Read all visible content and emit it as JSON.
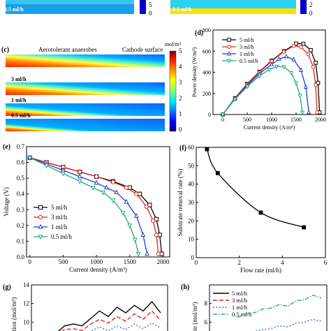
{
  "panel_labels": {
    "c": "(c)",
    "d": "(d)",
    "e": "(e)",
    "f": "(f)",
    "g": "(g)",
    "h": "(h)"
  },
  "top_strip": {
    "left_label": "0.5 ml/h",
    "right_label": "0.5 ml/h",
    "ticks_left": [
      "5",
      "0"
    ],
    "ticks_right": [
      "2",
      "0"
    ]
  },
  "contour": {
    "title_left": "Aerotolerant anaerobes",
    "title_right": "Cathode surface",
    "unit": "mol/m³",
    "scale_ticks": [
      "5",
      "4",
      "3",
      "2",
      "1",
      "0"
    ],
    "strips": [
      {
        "label": "5 ml/h",
        "front": 0.72
      },
      {
        "label": "3 ml/h",
        "front": 0.6
      },
      {
        "label": "1 ml/h",
        "front": 0.42
      },
      {
        "label": "0.5 ml/h",
        "front": 0.3
      }
    ]
  },
  "chart_data": [
    {
      "panel": "d",
      "type": "line",
      "xlabel": "Current density (A/m³)",
      "ylabel": "Power density (W/m³)",
      "xlim": [
        -200,
        2100
      ],
      "ylim": [
        0,
        800
      ],
      "xticks": [
        0,
        500,
        1000,
        1500,
        2000
      ],
      "yticks": [
        0,
        200,
        400,
        600,
        800
      ],
      "legend": "top-left",
      "series": [
        {
          "name": "5 ml/h",
          "marker": "square",
          "color": "#000000",
          "x": [
            0,
            250,
            500,
            750,
            1000,
            1250,
            1500,
            1650,
            1800,
            1900,
            1950,
            1980
          ],
          "y": [
            0,
            155,
            290,
            405,
            510,
            600,
            672,
            670,
            610,
            490,
            300,
            20
          ]
        },
        {
          "name": "3 ml/h",
          "marker": "circle",
          "color": "#e3241b",
          "x": [
            0,
            250,
            500,
            750,
            1000,
            1250,
            1450,
            1600,
            1750,
            1850,
            1900,
            1930
          ],
          "y": [
            0,
            152,
            285,
            400,
            505,
            595,
            650,
            640,
            570,
            450,
            280,
            20
          ]
        },
        {
          "name": "1 ml/h",
          "marker": "triangle-up",
          "color": "#1f3fd6",
          "x": [
            0,
            250,
            500,
            750,
            1000,
            1150,
            1300,
            1450,
            1600,
            1700,
            1760
          ],
          "y": [
            0,
            148,
            275,
            385,
            475,
            525,
            548,
            520,
            420,
            260,
            20
          ]
        },
        {
          "name": "0.5 ml/h",
          "marker": "triangle-down",
          "color": "#23a879",
          "x": [
            0,
            250,
            500,
            750,
            950,
            1100,
            1250,
            1400,
            1500,
            1580,
            1630
          ],
          "y": [
            0,
            145,
            265,
            365,
            425,
            455,
            452,
            395,
            300,
            180,
            20
          ]
        }
      ]
    },
    {
      "panel": "e",
      "type": "line",
      "xlabel": "Current density (A/m³)",
      "ylabel": "Voltage (V)",
      "xlim": [
        -50,
        2100
      ],
      "ylim": [
        0,
        0.7
      ],
      "xticks": [
        0,
        500,
        1000,
        1500,
        2000
      ],
      "yticks": [
        0.0,
        0.1,
        0.2,
        0.3,
        0.4,
        0.5,
        0.6,
        0.7
      ],
      "legend": "bottom-left",
      "series": [
        {
          "name": "5 ml/h",
          "marker": "square",
          "color": "#000000",
          "x": [
            0,
            250,
            500,
            750,
            1000,
            1250,
            1500,
            1650,
            1800,
            1900,
            1950,
            1980
          ],
          "y": [
            0.63,
            0.6,
            0.57,
            0.54,
            0.51,
            0.48,
            0.44,
            0.4,
            0.33,
            0.24,
            0.14,
            0.02
          ]
        },
        {
          "name": "3 ml/h",
          "marker": "circle",
          "color": "#e3241b",
          "x": [
            0,
            250,
            500,
            750,
            1000,
            1250,
            1450,
            1600,
            1750,
            1850,
            1900,
            1930
          ],
          "y": [
            0.63,
            0.6,
            0.57,
            0.54,
            0.51,
            0.475,
            0.44,
            0.4,
            0.32,
            0.23,
            0.14,
            0.02
          ]
        },
        {
          "name": "1 ml/h",
          "marker": "triangle-up",
          "color": "#1f3fd6",
          "x": [
            0,
            250,
            500,
            750,
            1000,
            1150,
            1300,
            1450,
            1600,
            1700,
            1760
          ],
          "y": [
            0.63,
            0.59,
            0.55,
            0.51,
            0.47,
            0.44,
            0.41,
            0.35,
            0.26,
            0.14,
            0.02
          ]
        },
        {
          "name": "0.5 ml/h",
          "marker": "triangle-down",
          "color": "#23a879",
          "x": [
            0,
            250,
            500,
            750,
            950,
            1100,
            1250,
            1400,
            1500,
            1580,
            1630
          ],
          "y": [
            0.63,
            0.58,
            0.53,
            0.48,
            0.44,
            0.41,
            0.36,
            0.28,
            0.2,
            0.11,
            0.02
          ]
        }
      ]
    },
    {
      "panel": "f",
      "type": "line",
      "xlabel": "Flow rate (ml/h)",
      "ylabel": "Substrate removal rate (%)",
      "xlim": [
        0,
        6
      ],
      "ylim": [
        0,
        60
      ],
      "xticks": [
        0,
        2,
        4,
        6
      ],
      "yticks": [
        0,
        10,
        20,
        30,
        40,
        50,
        60
      ],
      "series": [
        {
          "name": "",
          "marker": "square-filled",
          "color": "#000000",
          "x": [
            0.5,
            1,
            3,
            5
          ],
          "y": [
            59,
            46,
            24.5,
            16.5
          ]
        }
      ]
    },
    {
      "panel": "g",
      "type": "line",
      "ylabel": "ation (mol/m³)",
      "yticks": [
        10,
        12,
        14
      ],
      "series": [
        {
          "name": "5 ml/h",
          "style": "solid",
          "color": "#000000",
          "y": [
            8.8,
            9.6,
            9.8,
            9.6,
            10.4,
            11.2,
            10.6,
            11.6,
            11.0,
            11.8,
            11.2,
            12.2,
            11.0
          ]
        },
        {
          "name": "3 ml/h",
          "style": "dash",
          "color": "#e3241b",
          "y": [
            8.6,
            9.2,
            9.3,
            9.1,
            9.8,
            10.3,
            9.9,
            10.6,
            10.1,
            10.9,
            10.3,
            11.2,
            10.2
          ]
        },
        {
          "name": "1 ml/h",
          "style": "dot",
          "color": "#1f3fd6",
          "y": [
            8.3,
            8.7,
            8.9,
            8.7,
            9.0,
            9.5,
            9.1,
            9.6,
            9.2,
            9.8,
            9.3,
            9.9,
            9.4
          ]
        }
      ]
    },
    {
      "panel": "h",
      "type": "line",
      "ylabel": "ate (mol/m³)",
      "yticks": [
        6,
        8
      ],
      "series": [
        {
          "name": "5 ml/h",
          "style": "solid",
          "color": "#000000",
          "y": []
        },
        {
          "name": "3 ml/h",
          "style": "dash",
          "color": "#e3241b",
          "y": []
        },
        {
          "name": "1 ml/h",
          "style": "dot",
          "color": "#1f3fd6",
          "y": [
            4.7,
            4.9,
            5.0,
            5.2,
            5.3,
            5.6,
            5.5,
            5.9,
            6.0,
            6.3,
            6.1
          ]
        },
        {
          "name": "0.5 ml/h",
          "style": "dashdot",
          "color": "#23a879",
          "y": [
            6.5,
            6.9,
            7.0,
            7.4,
            7.5,
            7.9,
            7.7,
            8.3,
            8.4,
            8.9,
            8.6
          ]
        }
      ]
    }
  ]
}
